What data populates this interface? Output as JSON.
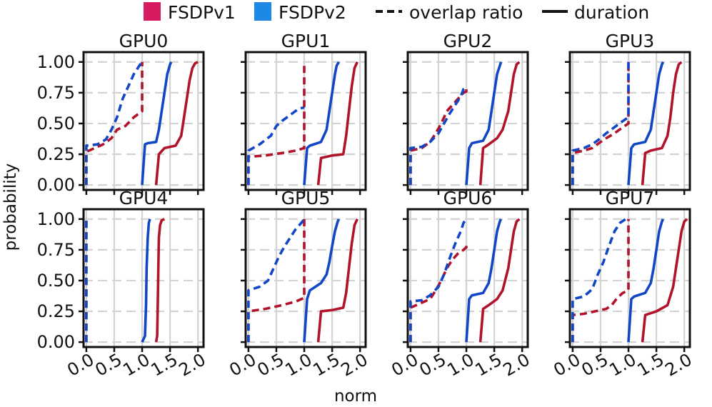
{
  "colors": {
    "fsdpv1": "#b0132a",
    "fsdpv2": "#1147c4",
    "fsdpv1_legend": "#d81b60",
    "fsdpv2_legend": "#1e88e5",
    "grid": "#d3d3d3"
  },
  "legend": {
    "fsdpv1": "FSDPv1",
    "fsdpv2": "FSDPv2",
    "overlap": "overlap ratio",
    "duration": "duration"
  },
  "chart_data": {
    "type": "line",
    "kind": "ECDF grid (2x4 subplots)",
    "xlabel": "norm",
    "ylabel": "probability",
    "xlim": [
      -0.05,
      2.1
    ],
    "ylim": [
      -0.04,
      1.08
    ],
    "xticks": [
      0.0,
      0.5,
      1.0,
      1.5,
      2.0
    ],
    "xtick_labels": [
      "0.0",
      "0.5",
      "1.0",
      "1.5",
      "2.0"
    ],
    "yticks": [
      0.0,
      0.25,
      0.5,
      0.75,
      1.0
    ],
    "ytick_labels": [
      "0.00",
      "0.25",
      "0.50",
      "0.75",
      "1.00"
    ],
    "subplots": [
      {
        "title": "GPU0",
        "series": [
          {
            "name": "FSDPv1 overlap ratio",
            "style": "dashed",
            "color": "fsdpv1",
            "x": [
              0.0,
              0.0,
              0.1,
              0.3,
              0.45,
              0.55,
              0.7,
              0.85,
              1.0,
              1.0,
              1.0
            ],
            "y": [
              0.0,
              0.27,
              0.29,
              0.33,
              0.38,
              0.45,
              0.48,
              0.55,
              0.6,
              0.9,
              1.0
            ]
          },
          {
            "name": "FSDPv2 overlap ratio",
            "style": "dashed",
            "color": "fsdpv2",
            "x": [
              0.0,
              0.0,
              0.2,
              0.35,
              0.45,
              0.55,
              0.65,
              0.75,
              0.85,
              0.95,
              1.0
            ],
            "y": [
              0.0,
              0.32,
              0.33,
              0.37,
              0.45,
              0.55,
              0.7,
              0.8,
              0.9,
              0.97,
              1.0
            ]
          },
          {
            "name": "FSDPv1 duration",
            "style": "solid",
            "color": "fsdpv1",
            "x": [
              1.25,
              1.3,
              1.4,
              1.6,
              1.7,
              1.75,
              1.8,
              1.85,
              1.9,
              1.95,
              2.0
            ],
            "y": [
              0.0,
              0.25,
              0.3,
              0.32,
              0.4,
              0.55,
              0.7,
              0.85,
              0.95,
              0.99,
              1.0
            ]
          },
          {
            "name": "FSDPv2 duration",
            "style": "solid",
            "color": "fsdpv2",
            "x": [
              1.0,
              1.05,
              1.1,
              1.25,
              1.3,
              1.35,
              1.4,
              1.45,
              1.5,
              1.52
            ],
            "y": [
              0.0,
              0.33,
              0.34,
              0.35,
              0.45,
              0.6,
              0.75,
              0.9,
              0.98,
              1.0
            ]
          }
        ]
      },
      {
        "title": "GPU1",
        "series": [
          {
            "name": "FSDPv1 overlap ratio",
            "style": "dashed",
            "color": "fsdpv1",
            "x": [
              0.0,
              0.0,
              0.3,
              0.6,
              0.85,
              1.0,
              1.0,
              1.0
            ],
            "y": [
              0.0,
              0.23,
              0.24,
              0.26,
              0.28,
              0.3,
              0.8,
              1.0
            ]
          },
          {
            "name": "FSDPv2 overlap ratio",
            "style": "dashed",
            "color": "fsdpv2",
            "x": [
              0.0,
              0.0,
              0.2,
              0.4,
              0.5,
              0.6,
              0.75,
              0.9,
              1.0
            ],
            "y": [
              0.0,
              0.28,
              0.33,
              0.4,
              0.48,
              0.52,
              0.57,
              0.62,
              0.63
            ]
          },
          {
            "name": "FSDPv1 duration",
            "style": "solid",
            "color": "fsdpv1",
            "x": [
              1.25,
              1.3,
              1.5,
              1.7,
              1.75,
              1.8,
              1.85,
              1.9,
              1.95
            ],
            "y": [
              0.0,
              0.22,
              0.24,
              0.25,
              0.4,
              0.6,
              0.8,
              0.95,
              1.0
            ]
          },
          {
            "name": "FSDPv2 duration",
            "style": "solid",
            "color": "fsdpv2",
            "x": [
              1.0,
              1.05,
              1.1,
              1.3,
              1.4,
              1.45,
              1.5,
              1.55,
              1.58,
              1.62
            ],
            "y": [
              0.0,
              0.3,
              0.32,
              0.35,
              0.45,
              0.6,
              0.75,
              0.9,
              0.97,
              1.0
            ]
          }
        ]
      },
      {
        "title": "GPU2",
        "series": [
          {
            "name": "FSDPv1 overlap ratio",
            "style": "dashed",
            "color": "fsdpv1",
            "x": [
              0.0,
              0.0,
              0.2,
              0.35,
              0.45,
              0.55,
              0.65,
              0.75,
              0.85,
              0.95,
              1.0,
              1.0
            ],
            "y": [
              0.0,
              0.28,
              0.3,
              0.35,
              0.42,
              0.5,
              0.6,
              0.65,
              0.7,
              0.75,
              0.76,
              0.8
            ]
          },
          {
            "name": "FSDPv2 overlap ratio",
            "style": "dashed",
            "color": "fsdpv2",
            "x": [
              0.0,
              0.0,
              0.2,
              0.35,
              0.5,
              0.6,
              0.7,
              0.8,
              0.9,
              0.95,
              1.0
            ],
            "y": [
              0.0,
              0.3,
              0.31,
              0.35,
              0.42,
              0.5,
              0.58,
              0.65,
              0.72,
              0.78,
              0.8
            ]
          },
          {
            "name": "FSDPv1 duration",
            "style": "solid",
            "color": "fsdpv1",
            "x": [
              1.25,
              1.3,
              1.4,
              1.55,
              1.65,
              1.75,
              1.8,
              1.85,
              1.9,
              1.95
            ],
            "y": [
              0.0,
              0.3,
              0.33,
              0.38,
              0.45,
              0.6,
              0.75,
              0.9,
              0.98,
              1.0
            ]
          },
          {
            "name": "FSDPv2 duration",
            "style": "solid",
            "color": "fsdpv2",
            "x": [
              1.0,
              1.05,
              1.1,
              1.3,
              1.4,
              1.45,
              1.5,
              1.55,
              1.6,
              1.62
            ],
            "y": [
              0.0,
              0.3,
              0.34,
              0.36,
              0.45,
              0.6,
              0.75,
              0.9,
              0.97,
              1.0
            ]
          }
        ]
      },
      {
        "title": "GPU3",
        "series": [
          {
            "name": "FSDPv1 overlap ratio",
            "style": "dashed",
            "color": "fsdpv1",
            "x": [
              0.0,
              0.0,
              0.2,
              0.35,
              0.5,
              0.6,
              0.75,
              0.9,
              1.0,
              1.0
            ],
            "y": [
              0.0,
              0.26,
              0.28,
              0.3,
              0.35,
              0.38,
              0.42,
              0.47,
              0.5,
              1.0
            ]
          },
          {
            "name": "FSDPv2 overlap ratio",
            "style": "dashed",
            "color": "fsdpv2",
            "x": [
              0.0,
              0.0,
              0.2,
              0.35,
              0.5,
              0.6,
              0.75,
              0.9,
              1.0,
              1.0
            ],
            "y": [
              0.0,
              0.28,
              0.3,
              0.33,
              0.38,
              0.42,
              0.47,
              0.52,
              0.55,
              1.0
            ]
          },
          {
            "name": "FSDPv1 duration",
            "style": "solid",
            "color": "fsdpv1",
            "x": [
              1.25,
              1.3,
              1.4,
              1.6,
              1.7,
              1.75,
              1.8,
              1.85,
              1.9,
              1.95
            ],
            "y": [
              0.0,
              0.26,
              0.28,
              0.3,
              0.4,
              0.55,
              0.75,
              0.9,
              0.98,
              1.0
            ]
          },
          {
            "name": "FSDPv2 duration",
            "style": "solid",
            "color": "fsdpv2",
            "x": [
              1.0,
              1.05,
              1.1,
              1.3,
              1.4,
              1.45,
              1.5,
              1.55,
              1.6,
              1.62
            ],
            "y": [
              0.0,
              0.3,
              0.33,
              0.35,
              0.45,
              0.6,
              0.75,
              0.9,
              0.98,
              1.0
            ]
          }
        ]
      },
      {
        "title": "GPU4",
        "series": [
          {
            "name": "FSDPv1 overlap ratio",
            "style": "dashed",
            "color": "fsdpv1",
            "x": [
              0.0,
              0.0
            ],
            "y": [
              0.0,
              1.0
            ]
          },
          {
            "name": "FSDPv2 overlap ratio",
            "style": "dashed",
            "color": "fsdpv2",
            "x": [
              0.0,
              0.0
            ],
            "y": [
              0.0,
              1.0
            ]
          },
          {
            "name": "FSDPv1 duration",
            "style": "solid",
            "color": "fsdpv1",
            "x": [
              1.25,
              1.27,
              1.28,
              1.29,
              1.3,
              1.32,
              1.35,
              1.4
            ],
            "y": [
              0.0,
              0.05,
              0.3,
              0.6,
              0.85,
              0.95,
              0.99,
              1.0
            ]
          },
          {
            "name": "FSDPv2 duration",
            "style": "solid",
            "color": "fsdpv2",
            "x": [
              1.0,
              1.05,
              1.07,
              1.08,
              1.1,
              1.12,
              1.14
            ],
            "y": [
              0.0,
              0.05,
              0.3,
              0.6,
              0.85,
              0.97,
              1.0
            ]
          }
        ]
      },
      {
        "title": "GPU5",
        "series": [
          {
            "name": "FSDPv1 overlap ratio",
            "style": "dashed",
            "color": "fsdpv1",
            "x": [
              0.0,
              0.0,
              0.3,
              0.6,
              0.85,
              1.0,
              1.0
            ],
            "y": [
              0.0,
              0.25,
              0.27,
              0.3,
              0.33,
              0.36,
              1.0
            ]
          },
          {
            "name": "FSDPv2 overlap ratio",
            "style": "dashed",
            "color": "fsdpv2",
            "x": [
              0.0,
              0.0,
              0.2,
              0.35,
              0.45,
              0.55,
              0.65,
              0.75,
              0.85,
              0.95,
              1.0
            ],
            "y": [
              0.0,
              0.42,
              0.45,
              0.5,
              0.6,
              0.7,
              0.78,
              0.85,
              0.92,
              0.97,
              1.0
            ]
          },
          {
            "name": "FSDPv1 duration",
            "style": "solid",
            "color": "fsdpv1",
            "x": [
              1.25,
              1.3,
              1.5,
              1.7,
              1.75,
              1.8,
              1.85,
              1.9,
              1.95
            ],
            "y": [
              0.0,
              0.25,
              0.26,
              0.28,
              0.4,
              0.6,
              0.8,
              0.95,
              1.0
            ]
          },
          {
            "name": "FSDPv2 duration",
            "style": "solid",
            "color": "fsdpv2",
            "x": [
              1.0,
              1.05,
              1.1,
              1.3,
              1.4,
              1.45,
              1.5,
              1.55,
              1.6,
              1.62
            ],
            "y": [
              0.0,
              0.35,
              0.42,
              0.48,
              0.55,
              0.65,
              0.78,
              0.9,
              0.98,
              1.0
            ]
          }
        ]
      },
      {
        "title": "GPU6",
        "series": [
          {
            "name": "FSDPv1 overlap ratio",
            "style": "dashed",
            "color": "fsdpv1",
            "x": [
              0.0,
              0.0,
              0.2,
              0.35,
              0.45,
              0.55,
              0.65,
              0.75,
              0.85,
              0.95,
              1.0,
              1.0
            ],
            "y": [
              0.0,
              0.28,
              0.32,
              0.35,
              0.42,
              0.5,
              0.6,
              0.67,
              0.72,
              0.75,
              0.77,
              0.8
            ]
          },
          {
            "name": "FSDPv2 overlap ratio",
            "style": "dashed",
            "color": "fsdpv2",
            "x": [
              0.0,
              0.0,
              0.2,
              0.35,
              0.5,
              0.6,
              0.7,
              0.8,
              0.9,
              0.95,
              1.0
            ],
            "y": [
              0.0,
              0.33,
              0.34,
              0.38,
              0.45,
              0.55,
              0.68,
              0.8,
              0.9,
              0.97,
              1.0
            ]
          },
          {
            "name": "FSDPv1 duration",
            "style": "solid",
            "color": "fsdpv1",
            "x": [
              1.25,
              1.3,
              1.4,
              1.55,
              1.65,
              1.75,
              1.8,
              1.85,
              1.9,
              1.95
            ],
            "y": [
              0.0,
              0.27,
              0.3,
              0.35,
              0.42,
              0.6,
              0.75,
              0.9,
              0.98,
              1.0
            ]
          },
          {
            "name": "FSDPv2 duration",
            "style": "solid",
            "color": "fsdpv2",
            "x": [
              1.0,
              1.05,
              1.1,
              1.3,
              1.4,
              1.45,
              1.5,
              1.55,
              1.6,
              1.62
            ],
            "y": [
              0.0,
              0.35,
              0.38,
              0.4,
              0.48,
              0.6,
              0.75,
              0.9,
              0.98,
              1.0
            ]
          }
        ]
      },
      {
        "title": "GPU7",
        "series": [
          {
            "name": "FSDPv1 overlap ratio",
            "style": "dashed",
            "color": "fsdpv1",
            "x": [
              0.0,
              0.0,
              0.2,
              0.4,
              0.6,
              0.7,
              0.8,
              0.9,
              1.0,
              1.0
            ],
            "y": [
              0.0,
              0.22,
              0.23,
              0.25,
              0.27,
              0.3,
              0.36,
              0.4,
              0.42,
              1.0
            ]
          },
          {
            "name": "FSDPv2 overlap ratio",
            "style": "dashed",
            "color": "fsdpv2",
            "x": [
              0.0,
              0.0,
              0.2,
              0.35,
              0.45,
              0.55,
              0.65,
              0.75,
              0.85,
              0.95
            ],
            "y": [
              0.0,
              0.35,
              0.37,
              0.43,
              0.55,
              0.65,
              0.78,
              0.9,
              0.97,
              1.0
            ]
          },
          {
            "name": "FSDPv1 duration",
            "style": "solid",
            "color": "fsdpv1",
            "x": [
              1.25,
              1.3,
              1.5,
              1.7,
              1.8,
              1.85,
              1.9,
              1.95,
              2.0,
              2.05
            ],
            "y": [
              0.0,
              0.22,
              0.25,
              0.3,
              0.45,
              0.6,
              0.75,
              0.9,
              0.98,
              1.0
            ]
          },
          {
            "name": "FSDPv2 duration",
            "style": "solid",
            "color": "fsdpv2",
            "x": [
              1.0,
              1.05,
              1.1,
              1.3,
              1.4,
              1.45,
              1.5,
              1.55,
              1.6,
              1.62
            ],
            "y": [
              0.0,
              0.35,
              0.37,
              0.4,
              0.48,
              0.6,
              0.75,
              0.9,
              0.98,
              1.0
            ]
          }
        ]
      }
    ]
  }
}
